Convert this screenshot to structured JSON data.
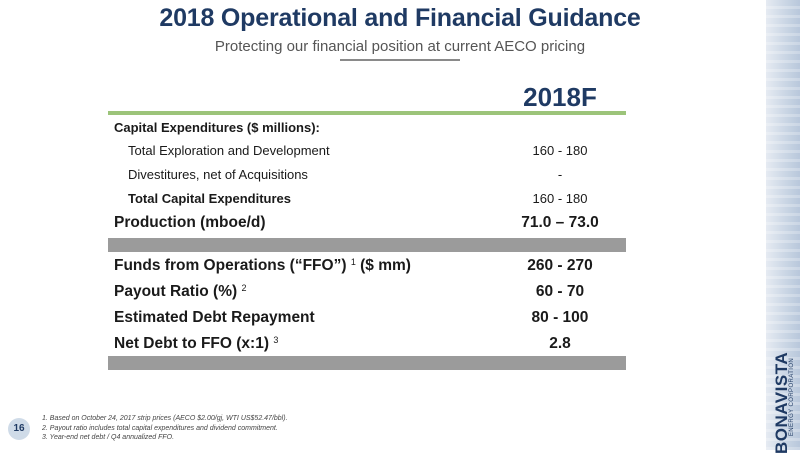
{
  "header": {
    "title": "2018 Operational and Financial Guidance",
    "subtitle": "Protecting our financial position at current AECO pricing"
  },
  "table": {
    "column_header": "2018F",
    "rows": [
      {
        "label": "Capital Expenditures ($ millions):",
        "value": "",
        "sup": ""
      },
      {
        "label": "Total Exploration and Development",
        "value": "160 - 180",
        "sup": ""
      },
      {
        "label": "Divestitures, net of Acquisitions",
        "value": "-",
        "sup": ""
      },
      {
        "label": "Total Capital Expenditures",
        "value": "160 - 180",
        "sup": ""
      },
      {
        "label": "Production (mboe/d)",
        "value": "71.0 – 73.0",
        "sup": ""
      },
      {
        "label": "Funds from Operations (“FFO”)",
        "label_after": " ($ mm)",
        "value": "260 - 270",
        "sup": "1"
      },
      {
        "label": "Payout Ratio (%)",
        "value": "60 - 70",
        "sup": "2"
      },
      {
        "label": "Estimated Debt Repayment",
        "value": "80 - 100",
        "sup": ""
      },
      {
        "label": "Net Debt to FFO (x:1)",
        "value": "2.8",
        "sup": "3"
      }
    ]
  },
  "footnotes": [
    "1. Based on October 24, 2017 strip prices (AECO $2.00/gj, WTI US$52.47/bbl).",
    "2. Payout ratio includes total capital expenditures and dividend commitment.",
    "3. Year-end net debt / Q4 annualized FFO."
  ],
  "page_number": "16",
  "logo": {
    "name": "BONAVISTA",
    "tagline": "ENERGY CORPORATION"
  },
  "colors": {
    "title": "#1f3a63",
    "green_rule": "#9cc47a",
    "gray_band": "#9b9b9b"
  }
}
